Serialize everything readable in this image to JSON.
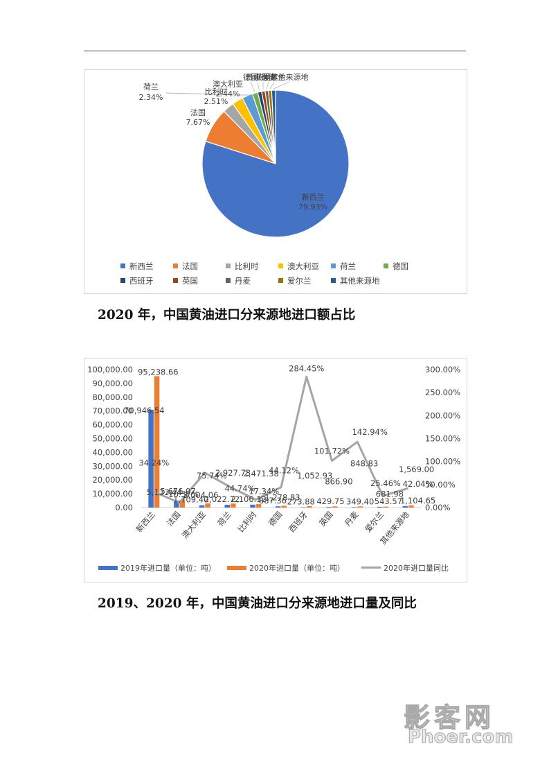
{
  "captions": {
    "pie": "2020 年，中国黄油进口分来源地进口额占比",
    "combo": "2019、2020 年，中国黄油进口分来源地进口量及同比"
  },
  "watermark": {
    "cn": "影客网",
    "en": "Phoer.com"
  },
  "chart_data": [
    {
      "type": "pie",
      "categories": [
        "新西兰",
        "法国",
        "比利时",
        "澳大利亚",
        "荷兰",
        "德国",
        "西班牙",
        "英国",
        "丹麦",
        "爱尔兰",
        "其他来源地"
      ],
      "values": [
        79.93,
        7.67,
        2.51,
        2.44,
        2.34,
        1.2,
        0.85,
        0.78,
        0.72,
        0.7,
        0.86
      ],
      "data_labels": [
        "79.93%",
        "7.67%",
        "2.51%",
        "2.44%",
        "2.34%",
        "",
        "",
        "",
        "",
        "",
        ""
      ],
      "colors": [
        "#4472c4",
        "#ed7d31",
        "#a5a5a5",
        "#ffc000",
        "#5b9bd5",
        "#70ad47",
        "#264478",
        "#9e480e",
        "#636363",
        "#997300",
        "#255e91"
      ],
      "legend_position": "bottom"
    },
    {
      "type": "bar+line",
      "categories": [
        "新西兰",
        "法国",
        "澳大利亚",
        "荷兰",
        "比利时",
        "德国",
        "西班牙",
        "英国",
        "丹麦",
        "爱尔兰",
        "其他来源地"
      ],
      "series": [
        {
          "name": "2019年进口量（单位：吨）",
          "type": "bar",
          "axis": "left",
          "color": "#4472c4",
          "values": [
            70946.54,
            5133.44,
            1709.4,
            2022.72,
            2106.12,
            887.36,
            273.88,
            429.75,
            349.4,
            543.57,
            1104.65
          ],
          "labels": [
            "70,946.54",
            "5,133.44",
            "1,709.40",
            "2,022.72",
            "2,106.12",
            "887.36",
            "273.88",
            "429.75",
            "349.40",
            "543.57",
            "1,104.65"
          ]
        },
        {
          "name": "2020年进口量（单位：吨）",
          "type": "bar",
          "axis": "left",
          "color": "#ed7d31",
          "values": [
            95238.66,
            5676.07,
            3004.06,
            2927.73,
            2471.38,
            1278.83,
            1052.93,
            866.9,
            848.83,
            681.98,
            1569.0
          ],
          "labels": [
            "95,238.66",
            "5,676.07",
            "3,004.06",
            "2,927.73",
            "2,471.38",
            "1,278.83",
            "1,052.93",
            "866.90",
            "848.83",
            "681.98",
            "1,569.00"
          ]
        },
        {
          "name": "2020年进口量同比",
          "type": "line",
          "axis": "right",
          "color": "#a5a5a5",
          "values": [
            34.24,
            10.57,
            75.74,
            44.74,
            17.34,
            44.12,
            284.45,
            101.72,
            142.94,
            25.46,
            42.04
          ],
          "labels": [
            "34.24%",
            "10.57%",
            "75.74%",
            "44.74%",
            "17.34%",
            "44.12%",
            "284.45%",
            "101.72%",
            "142.94%",
            "25.46%",
            "42.04%"
          ]
        }
      ],
      "y_left": {
        "min": 0,
        "max": 100000,
        "step": 10000,
        "ticks": [
          "0.00",
          "10,000.00",
          "20,000.00",
          "30,000.00",
          "40,000.00",
          "50,000.00",
          "60,000.00",
          "70,000.00",
          "80,000.00",
          "90,000.00",
          "100,000.00"
        ]
      },
      "y_right": {
        "min": 0,
        "max": 300,
        "step": 50,
        "ticks": [
          "0.00%",
          "50.00%",
          "100.00%",
          "150.00%",
          "200.00%",
          "250.00%",
          "300.00%"
        ]
      },
      "grid": false,
      "legend_position": "bottom"
    }
  ]
}
